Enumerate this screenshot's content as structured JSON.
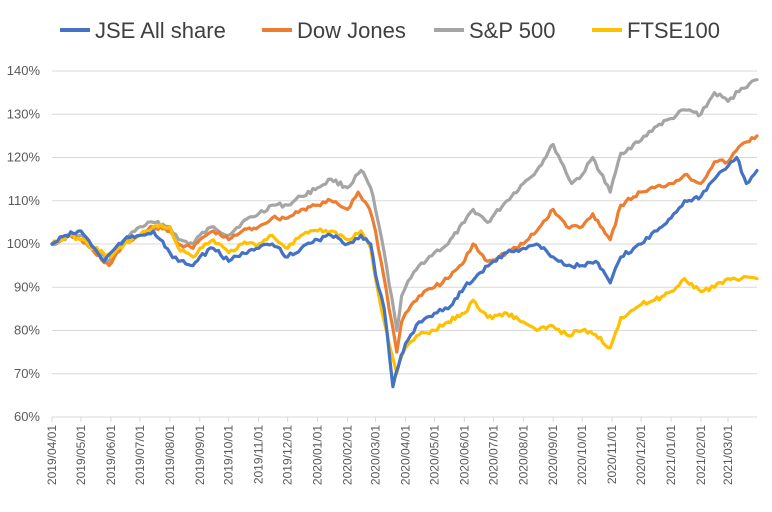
{
  "chart_data": {
    "type": "line",
    "title": "",
    "xlabel": "",
    "ylabel": "",
    "ylim": [
      0.6,
      1.4
    ],
    "y_ticks": [
      "60%",
      "70%",
      "80%",
      "90%",
      "100%",
      "110%",
      "120%",
      "130%",
      "140%"
    ],
    "x_ticks": [
      "2019/04/01",
      "2019/05/01",
      "2019/06/01",
      "2019/07/01",
      "2019/08/01",
      "2019/09/01",
      "2019/10/01",
      "2019/11/01",
      "2019/12/01",
      "2020/01/01",
      "2020/02/01",
      "2020/03/01",
      "2020/04/01",
      "2020/05/01",
      "2020/06/01",
      "2020/07/01",
      "2020/08/01",
      "2020/09/01",
      "2020/10/01",
      "2020/11/01",
      "2020/12/01",
      "2021/01/01",
      "2021/02/01",
      "2021/03/01"
    ],
    "grid": "horizontal",
    "legend_position": "top",
    "colors": {
      "jse": "#4472C4",
      "dow": "#ED7D31",
      "sp": "#A5A5A5",
      "ftse": "#FFC000",
      "grid": "#D9D9D9",
      "axis_text": "#595959"
    },
    "series": [
      {
        "name": "JSE All share",
        "key": "jse",
        "points": [
          [
            "2019/04/01",
            1.0
          ],
          [
            "2019/04/15",
            1.02
          ],
          [
            "2019/05/01",
            1.03
          ],
          [
            "2019/05/15",
            0.99
          ],
          [
            "2019/05/25",
            0.96
          ],
          [
            "2019/06/01",
            0.98
          ],
          [
            "2019/06/15",
            1.01
          ],
          [
            "2019/07/01",
            1.02
          ],
          [
            "2019/07/15",
            1.03
          ],
          [
            "2019/08/01",
            0.98
          ],
          [
            "2019/08/10",
            0.96
          ],
          [
            "2019/08/25",
            0.95
          ],
          [
            "2019/09/01",
            0.97
          ],
          [
            "2019/09/15",
            0.99
          ],
          [
            "2019/10/01",
            0.96
          ],
          [
            "2019/10/15",
            0.98
          ],
          [
            "2019/11/01",
            0.99
          ],
          [
            "2019/11/15",
            1.0
          ],
          [
            "2019/12/01",
            0.97
          ],
          [
            "2019/12/15",
            0.99
          ],
          [
            "2020/01/01",
            1.01
          ],
          [
            "2020/01/15",
            1.02
          ],
          [
            "2020/02/01",
            1.0
          ],
          [
            "2020/02/15",
            1.02
          ],
          [
            "2020/02/25",
            1.0
          ],
          [
            "2020/03/01",
            0.93
          ],
          [
            "2020/03/10",
            0.85
          ],
          [
            "2020/03/19",
            0.67
          ],
          [
            "2020/03/25",
            0.72
          ],
          [
            "2020/04/01",
            0.77
          ],
          [
            "2020/04/15",
            0.82
          ],
          [
            "2020/05/01",
            0.84
          ],
          [
            "2020/05/15",
            0.85
          ],
          [
            "2020/06/01",
            0.9
          ],
          [
            "2020/06/15",
            0.93
          ],
          [
            "2020/07/01",
            0.96
          ],
          [
            "2020/07/15",
            0.98
          ],
          [
            "2020/08/01",
            0.99
          ],
          [
            "2020/08/15",
            1.0
          ],
          [
            "2020/09/01",
            0.97
          ],
          [
            "2020/09/15",
            0.95
          ],
          [
            "2020/10/01",
            0.95
          ],
          [
            "2020/10/15",
            0.96
          ],
          [
            "2020/10/30",
            0.91
          ],
          [
            "2020/11/10",
            0.97
          ],
          [
            "2020/12/01",
            1.0
          ],
          [
            "2020/12/15",
            1.03
          ],
          [
            "2021/01/01",
            1.06
          ],
          [
            "2021/01/15",
            1.1
          ],
          [
            "2021/02/01",
            1.11
          ],
          [
            "2021/02/15",
            1.15
          ],
          [
            "2021/03/01",
            1.18
          ],
          [
            "2021/03/10",
            1.2
          ],
          [
            "2021/03/20",
            1.14
          ],
          [
            "2021/03/31",
            1.17
          ]
        ]
      },
      {
        "name": "Dow Jones",
        "key": "dow",
        "points": [
          [
            "2019/04/01",
            1.0
          ],
          [
            "2019/04/20",
            1.02
          ],
          [
            "2019/05/01",
            1.01
          ],
          [
            "2019/05/15",
            0.98
          ],
          [
            "2019/05/30",
            0.95
          ],
          [
            "2019/06/15",
            1.0
          ],
          [
            "2019/07/01",
            1.02
          ],
          [
            "2019/07/15",
            1.04
          ],
          [
            "2019/08/01",
            1.03
          ],
          [
            "2019/08/10",
            1.0
          ],
          [
            "2019/08/25",
            0.99
          ],
          [
            "2019/09/01",
            1.01
          ],
          [
            "2019/09/15",
            1.03
          ],
          [
            "2019/10/01",
            1.01
          ],
          [
            "2019/10/15",
            1.03
          ],
          [
            "2019/11/01",
            1.04
          ],
          [
            "2019/11/15",
            1.06
          ],
          [
            "2019/12/01",
            1.06
          ],
          [
            "2019/12/15",
            1.08
          ],
          [
            "2020/01/01",
            1.09
          ],
          [
            "2020/01/15",
            1.1
          ],
          [
            "2020/02/01",
            1.08
          ],
          [
            "2020/02/12",
            1.12
          ],
          [
            "2020/02/24",
            1.08
          ],
          [
            "2020/03/01",
            1.03
          ],
          [
            "2020/03/10",
            0.92
          ],
          [
            "2020/03/23",
            0.75
          ],
          [
            "2020/03/28",
            0.82
          ],
          [
            "2020/04/01",
            0.84
          ],
          [
            "2020/04/15",
            0.88
          ],
          [
            "2020/05/01",
            0.9
          ],
          [
            "2020/05/15",
            0.92
          ],
          [
            "2020/06/01",
            0.96
          ],
          [
            "2020/06/10",
            1.0
          ],
          [
            "2020/06/25",
            0.96
          ],
          [
            "2020/07/15",
            0.98
          ],
          [
            "2020/08/01",
            1.0
          ],
          [
            "2020/08/15",
            1.03
          ],
          [
            "2020/09/01",
            1.08
          ],
          [
            "2020/09/15",
            1.04
          ],
          [
            "2020/10/01",
            1.04
          ],
          [
            "2020/10/12",
            1.07
          ],
          [
            "2020/10/30",
            1.01
          ],
          [
            "2020/11/10",
            1.09
          ],
          [
            "2020/12/01",
            1.12
          ],
          [
            "2020/12/15",
            1.13
          ],
          [
            "2021/01/01",
            1.14
          ],
          [
            "2021/01/15",
            1.16
          ],
          [
            "2021/02/01",
            1.14
          ],
          [
            "2021/02/15",
            1.19
          ],
          [
            "2021/03/01",
            1.19
          ],
          [
            "2021/03/15",
            1.23
          ],
          [
            "2021/03/31",
            1.25
          ]
        ]
      },
      {
        "name": "S&P 500",
        "key": "sp",
        "points": [
          [
            "2019/04/01",
            1.0
          ],
          [
            "2019/04/20",
            1.02
          ],
          [
            "2019/05/01",
            1.02
          ],
          [
            "2019/05/15",
            0.99
          ],
          [
            "2019/05/30",
            0.96
          ],
          [
            "2019/06/15",
            1.01
          ],
          [
            "2019/07/01",
            1.04
          ],
          [
            "2019/07/15",
            1.05
          ],
          [
            "2019/08/01",
            1.04
          ],
          [
            "2019/08/10",
            1.01
          ],
          [
            "2019/08/25",
            1.0
          ],
          [
            "2019/09/01",
            1.02
          ],
          [
            "2019/09/15",
            1.04
          ],
          [
            "2019/10/01",
            1.02
          ],
          [
            "2019/10/15",
            1.05
          ],
          [
            "2019/11/01",
            1.07
          ],
          [
            "2019/11/15",
            1.09
          ],
          [
            "2019/12/01",
            1.09
          ],
          [
            "2019/12/15",
            1.11
          ],
          [
            "2020/01/01",
            1.13
          ],
          [
            "2020/01/15",
            1.15
          ],
          [
            "2020/02/01",
            1.13
          ],
          [
            "2020/02/15",
            1.17
          ],
          [
            "2020/02/25",
            1.13
          ],
          [
            "2020/03/01",
            1.08
          ],
          [
            "2020/03/10",
            0.98
          ],
          [
            "2020/03/23",
            0.8
          ],
          [
            "2020/03/28",
            0.88
          ],
          [
            "2020/04/01",
            0.9
          ],
          [
            "2020/04/15",
            0.95
          ],
          [
            "2020/05/01",
            0.98
          ],
          [
            "2020/05/15",
            1.0
          ],
          [
            "2020/06/01",
            1.05
          ],
          [
            "2020/06/10",
            1.08
          ],
          [
            "2020/06/25",
            1.05
          ],
          [
            "2020/07/15",
            1.1
          ],
          [
            "2020/08/01",
            1.14
          ],
          [
            "2020/08/15",
            1.17
          ],
          [
            "2020/09/01",
            1.23
          ],
          [
            "2020/09/20",
            1.14
          ],
          [
            "2020/10/01",
            1.16
          ],
          [
            "2020/10/12",
            1.2
          ],
          [
            "2020/10/30",
            1.12
          ],
          [
            "2020/11/10",
            1.21
          ],
          [
            "2020/12/01",
            1.24
          ],
          [
            "2020/12/15",
            1.27
          ],
          [
            "2021/01/01",
            1.29
          ],
          [
            "2021/01/15",
            1.31
          ],
          [
            "2021/02/01",
            1.3
          ],
          [
            "2021/02/15",
            1.35
          ],
          [
            "2021/03/01",
            1.33
          ],
          [
            "2021/03/15",
            1.36
          ],
          [
            "2021/03/31",
            1.38
          ]
        ]
      },
      {
        "name": "FTSE100",
        "key": "ftse",
        "points": [
          [
            "2019/04/01",
            1.0
          ],
          [
            "2019/04/20",
            1.02
          ],
          [
            "2019/05/01",
            1.01
          ],
          [
            "2019/05/15",
            0.99
          ],
          [
            "2019/06/01",
            0.97
          ],
          [
            "2019/06/15",
            1.0
          ],
          [
            "2019/07/01",
            1.02
          ],
          [
            "2019/07/15",
            1.04
          ],
          [
            "2019/08/01",
            1.04
          ],
          [
            "2019/08/10",
            0.99
          ],
          [
            "2019/08/25",
            0.97
          ],
          [
            "2019/09/01",
            0.99
          ],
          [
            "2019/09/15",
            1.01
          ],
          [
            "2019/10/01",
            0.98
          ],
          [
            "2019/10/15",
            1.0
          ],
          [
            "2019/11/01",
            1.0
          ],
          [
            "2019/11/15",
            1.02
          ],
          [
            "2019/12/01",
            0.99
          ],
          [
            "2019/12/15",
            1.02
          ],
          [
            "2020/01/01",
            1.03
          ],
          [
            "2020/01/15",
            1.03
          ],
          [
            "2020/02/01",
            1.01
          ],
          [
            "2020/02/15",
            1.03
          ],
          [
            "2020/02/25",
            0.99
          ],
          [
            "2020/03/01",
            0.92
          ],
          [
            "2020/03/10",
            0.82
          ],
          [
            "2020/03/23",
            0.7
          ],
          [
            "2020/03/28",
            0.74
          ],
          [
            "2020/04/01",
            0.76
          ],
          [
            "2020/04/15",
            0.79
          ],
          [
            "2020/05/01",
            0.8
          ],
          [
            "2020/05/15",
            0.82
          ],
          [
            "2020/06/01",
            0.84
          ],
          [
            "2020/06/10",
            0.87
          ],
          [
            "2020/06/25",
            0.83
          ],
          [
            "2020/07/15",
            0.84
          ],
          [
            "2020/08/01",
            0.82
          ],
          [
            "2020/08/15",
            0.8
          ],
          [
            "2020/09/01",
            0.81
          ],
          [
            "2020/09/15",
            0.79
          ],
          [
            "2020/10/01",
            0.8
          ],
          [
            "2020/10/15",
            0.79
          ],
          [
            "2020/10/30",
            0.76
          ],
          [
            "2020/11/10",
            0.83
          ],
          [
            "2020/12/01",
            0.86
          ],
          [
            "2020/12/15",
            0.87
          ],
          [
            "2021/01/01",
            0.89
          ],
          [
            "2021/01/15",
            0.92
          ],
          [
            "2021/02/01",
            0.89
          ],
          [
            "2021/02/15",
            0.9
          ],
          [
            "2021/03/01",
            0.92
          ],
          [
            "2021/03/15",
            0.92
          ],
          [
            "2021/03/31",
            0.92
          ]
        ]
      }
    ]
  }
}
